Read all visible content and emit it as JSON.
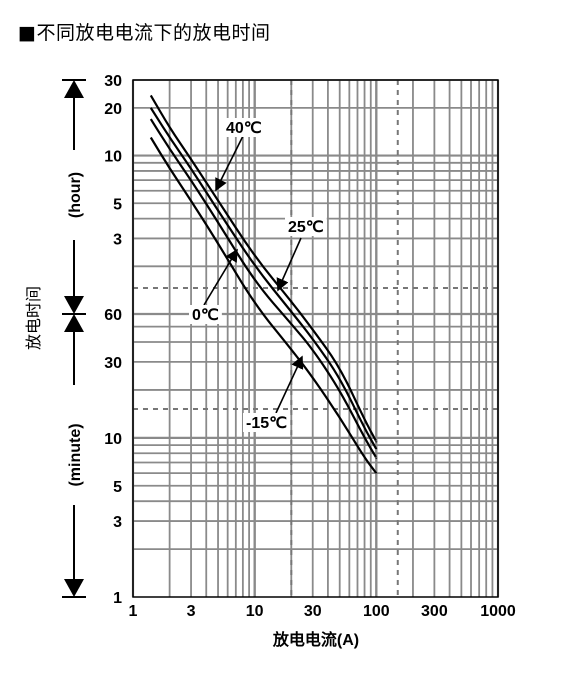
{
  "title": "■不同放电电流下的放电时间",
  "chart_data": {
    "type": "line",
    "title": "■不同放电电流下的放电时间",
    "xlabel": "放电电流(A)",
    "ylabel": "放电时间",
    "xscale": "log",
    "xlim": [
      1,
      1000
    ],
    "xticks": [
      "1",
      "3",
      "10",
      "30",
      "100",
      "300",
      "1000"
    ],
    "y_segments": [
      {
        "label": "(hour)",
        "unit": "hour",
        "range": [
          1,
          30
        ],
        "ticks": [
          "3",
          "5",
          "10",
          "20",
          "30"
        ]
      },
      {
        "label": "(minute)",
        "unit": "minute",
        "range": [
          1,
          60
        ],
        "ticks": [
          "1",
          "3",
          "5",
          "10",
          "30",
          "60"
        ]
      }
    ],
    "grid": true,
    "series": [
      {
        "name": "40℃",
        "points": [
          [
            1.4,
            24
          ],
          [
            2,
            15
          ],
          [
            3,
            9.5
          ],
          [
            5,
            5.2
          ],
          [
            10,
            2.3
          ],
          [
            20,
            1.2
          ],
          [
            30,
            48
          ],
          [
            50,
            28
          ],
          [
            80,
            13
          ],
          [
            100,
            9.5
          ]
        ]
      },
      {
        "name": "25℃",
        "points": [
          [
            1.4,
            20
          ],
          [
            2,
            13
          ],
          [
            3,
            8.3
          ],
          [
            5,
            4.5
          ],
          [
            10,
            2.0
          ],
          [
            20,
            62
          ],
          [
            30,
            42
          ],
          [
            50,
            24
          ],
          [
            80,
            11.5
          ],
          [
            100,
            8.5
          ]
        ]
      },
      {
        "name": "0℃",
        "points": [
          [
            1.4,
            17
          ],
          [
            2,
            11
          ],
          [
            3,
            7
          ],
          [
            5,
            3.8
          ],
          [
            10,
            1.6
          ],
          [
            20,
            52
          ],
          [
            30,
            36
          ],
          [
            50,
            20
          ],
          [
            80,
            10
          ],
          [
            100,
            7.5
          ]
        ]
      },
      {
        "name": "-15℃",
        "points": [
          [
            1.4,
            13
          ],
          [
            2,
            8.3
          ],
          [
            3,
            5.2
          ],
          [
            5,
            2.8
          ],
          [
            10,
            1.15
          ],
          [
            20,
            36
          ],
          [
            30,
            24
          ],
          [
            50,
            13.5
          ],
          [
            80,
            7.5
          ],
          [
            100,
            6
          ]
        ]
      }
    ],
    "annotations": [
      {
        "text": "40℃",
        "series": "40℃"
      },
      {
        "text": "25℃",
        "series": "25℃"
      },
      {
        "text": "0℃",
        "series": "0℃"
      },
      {
        "text": "-15℃",
        "series": "-15℃"
      }
    ]
  }
}
